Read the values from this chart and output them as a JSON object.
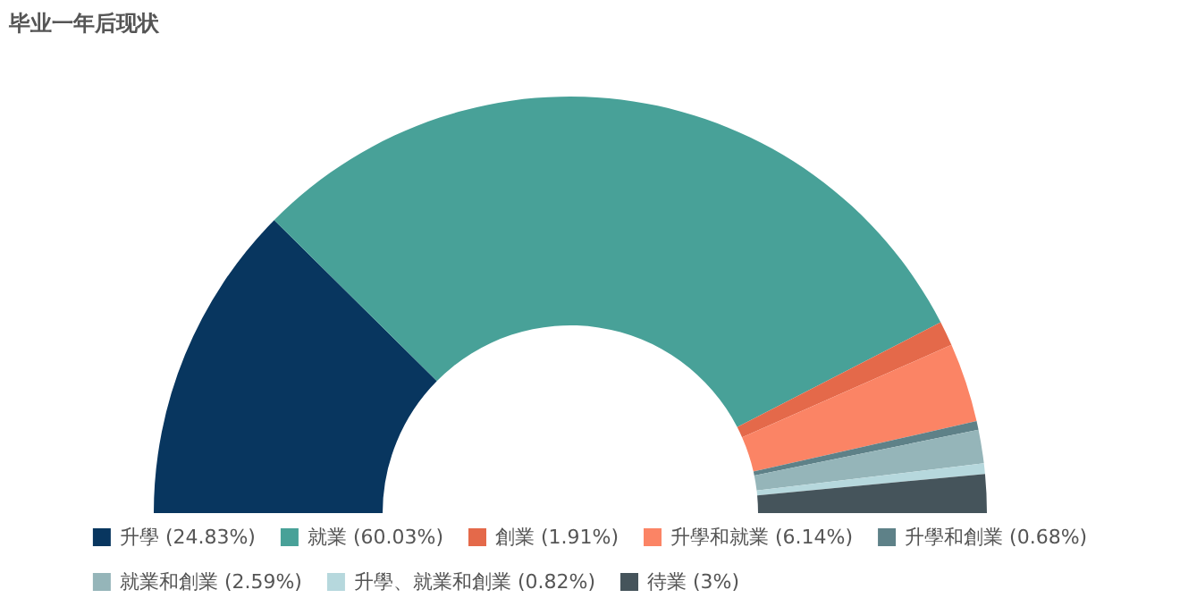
{
  "chart_data": {
    "type": "donut",
    "title": "毕业一年后现状",
    "categories": [
      "升學 (24.83%)",
      "就業 (60.03%)",
      "創業 (1.91%)",
      "升學和就業 (6.14%)",
      "升學和創業 (0.68%)",
      "就業和創業 (2.59%)",
      "升學、就業和創業 (0.82%)",
      "待業 (3%)"
    ],
    "values": [
      24.83,
      60.03,
      1.91,
      6.14,
      0.68,
      2.59,
      0.82,
      3
    ],
    "colors": [
      "#08365f",
      "#48a198",
      "#e4694a",
      "#fb8465",
      "#5e8188",
      "#95b5b9",
      "#b6d8dd",
      "#45545b"
    ],
    "legend": "bottom"
  }
}
